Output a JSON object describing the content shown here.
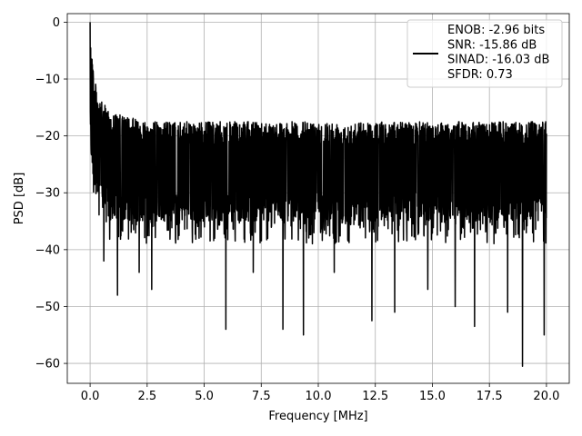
{
  "chart_data": {
    "type": "line",
    "title": "",
    "xlabel": "Frequency [MHz]",
    "ylabel": "PSD [dB]",
    "xlim": [
      -1.0,
      21.0
    ],
    "ylim": [
      -63.5,
      1.5
    ],
    "grid": true,
    "legend_placement": "top-right",
    "x_ticks": [
      0.0,
      2.5,
      5.0,
      7.5,
      10.0,
      12.5,
      15.0,
      17.5,
      20.0
    ],
    "x_tick_labels": [
      "0.0",
      "2.5",
      "5.0",
      "7.5",
      "10.0",
      "12.5",
      "15.0",
      "17.5",
      "20.0"
    ],
    "y_ticks": [
      0,
      -10,
      -20,
      -30,
      -40,
      -50,
      -60
    ],
    "y_tick_labels": [
      "0",
      "−10",
      "−20",
      "−30",
      "−40",
      "−50",
      "−60"
    ],
    "series": [
      {
        "name": "ENOB: -2.96 bits\nSNR: -15.86 dB\nSINAD: -16.03 dB\nSFDR: 0.73",
        "color": "#000000",
        "x_range": [
          0.0,
          20.0
        ],
        "envelope": {
          "x": [
            0.0,
            0.05,
            0.1,
            0.2,
            0.3,
            0.5,
            0.75,
            1.0,
            1.5,
            2.0,
            3.0,
            5.0,
            7.5,
            10.0,
            12.5,
            15.0,
            17.5,
            20.0
          ],
          "upper": [
            0,
            -2,
            -6,
            -10,
            -12,
            -14,
            -15,
            -16,
            -16.5,
            -17,
            -17.5,
            -17.5,
            -17.5,
            -17.5,
            -17.5,
            -17.5,
            -17.5,
            -17.5
          ],
          "lower": [
            -20,
            -24,
            -27,
            -29,
            -31,
            -33,
            -34,
            -35,
            -35,
            -35,
            -35,
            -35,
            -35,
            -35,
            -35,
            -35,
            -35,
            -35
          ]
        },
        "notable_dips": [
          {
            "x": 0.6,
            "y": -42
          },
          {
            "x": 1.2,
            "y": -48
          },
          {
            "x": 2.15,
            "y": -44
          },
          {
            "x": 2.7,
            "y": -47
          },
          {
            "x": 5.95,
            "y": -54
          },
          {
            "x": 7.15,
            "y": -44
          },
          {
            "x": 8.45,
            "y": -54
          },
          {
            "x": 9.35,
            "y": -55
          },
          {
            "x": 10.7,
            "y": -44
          },
          {
            "x": 12.35,
            "y": -52.5
          },
          {
            "x": 13.35,
            "y": -51
          },
          {
            "x": 14.8,
            "y": -47
          },
          {
            "x": 16.0,
            "y": -50
          },
          {
            "x": 16.85,
            "y": -53.5
          },
          {
            "x": 18.3,
            "y": -51
          },
          {
            "x": 18.95,
            "y": -60.5
          },
          {
            "x": 19.9,
            "y": -55
          }
        ]
      }
    ]
  }
}
